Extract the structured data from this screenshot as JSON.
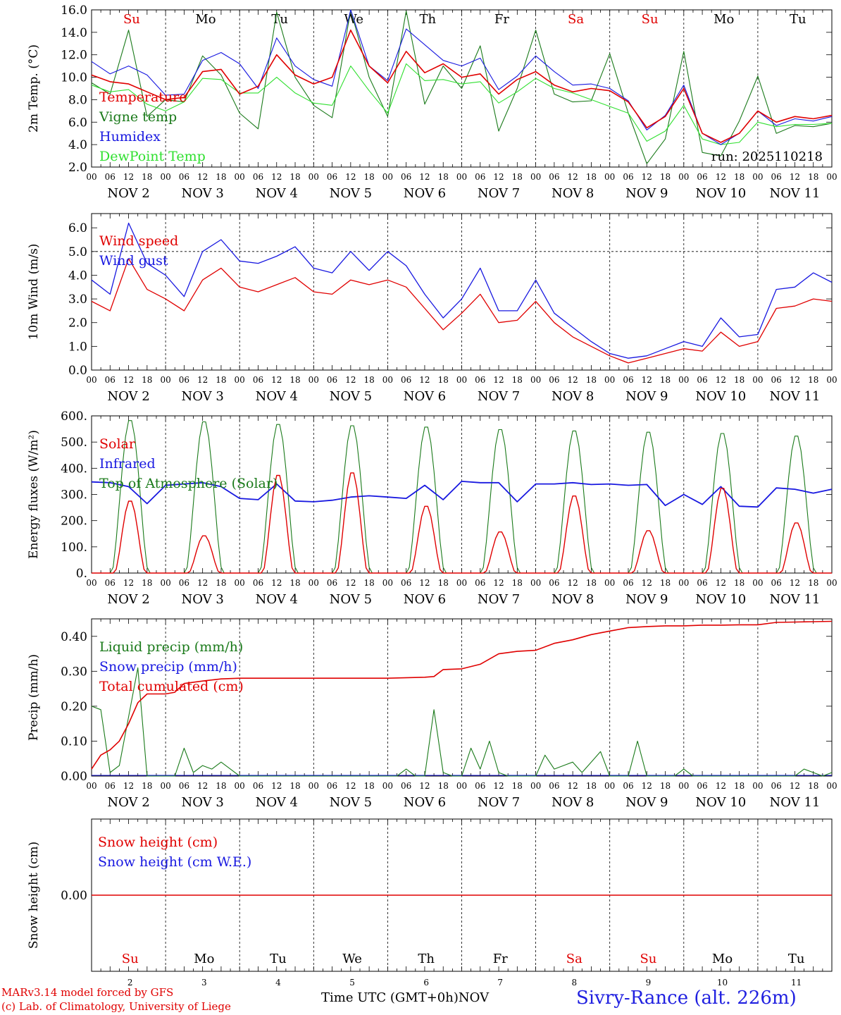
{
  "colors": {
    "red": "#e00000",
    "green": "#1a7a1a",
    "blue": "#1818e0",
    "lightgreen": "#30e030",
    "black": "#000000"
  },
  "days": {
    "weekday_labels": [
      "Su",
      "Mo",
      "Tu",
      "We",
      "Th",
      "Fr",
      "Sa",
      "Su",
      "Mo",
      "Tu"
    ],
    "weekday_red": [
      true,
      false,
      false,
      false,
      false,
      false,
      true,
      true,
      false,
      false
    ],
    "date_labels": [
      "NOV  2",
      "NOV  3",
      "NOV  4",
      "NOV  5",
      "NOV  6",
      "NOV  7",
      "NOV  8",
      "NOV  9",
      "NOV 10",
      "NOV 11"
    ],
    "day_numbers": [
      "2",
      "3",
      "4",
      "5",
      "6",
      "7",
      "8",
      "9",
      "10",
      "11"
    ],
    "hour_ticks": [
      "00",
      "06",
      "12",
      "18"
    ],
    "final_tick": "00"
  },
  "chart_data": [
    {
      "type": "line",
      "id": "temp",
      "ylabel": "2m Temp. (°C)",
      "ylim": [
        2,
        16
      ],
      "yticks": [
        "2.0",
        "4.0",
        "6.0",
        "8.0",
        "10.0",
        "12.0",
        "14.0",
        "16.0"
      ],
      "run_label": "run: 2025110218",
      "legend": [
        "Temperature",
        "Vigne temp",
        "Humidex",
        "DewPoint Temp"
      ],
      "x_hours": [
        0,
        6,
        12,
        18,
        24,
        30,
        36,
        42,
        48,
        54,
        60,
        66,
        72,
        78,
        84,
        90,
        96,
        102,
        108,
        114,
        120,
        126,
        132,
        138,
        144,
        150,
        156,
        162,
        168,
        174,
        180,
        186,
        192,
        198,
        204,
        210,
        216,
        222,
        228,
        234,
        240
      ],
      "series": [
        {
          "name": "Temperature",
          "color": "red",
          "values": [
            10.2,
            9.6,
            9.4,
            8.7,
            8.0,
            8.2,
            10.5,
            10.7,
            8.5,
            9.2,
            12.0,
            10.2,
            9.4,
            10.0,
            14.2,
            11.0,
            9.5,
            12.3,
            10.4,
            11.2,
            10.0,
            10.3,
            8.5,
            9.8,
            10.5,
            9.3,
            8.7,
            9.0,
            8.8,
            7.8,
            5.5,
            6.5,
            9.0,
            5.0,
            4.2,
            5.0,
            7.0,
            6.0,
            6.5,
            6.3,
            6.6
          ]
        },
        {
          "name": "Vigne temp",
          "color": "green",
          "values": [
            9.5,
            8.5,
            14.2,
            6.5,
            8.0,
            7.8,
            11.9,
            10.2,
            6.8,
            5.4,
            15.8,
            10.0,
            7.5,
            6.4,
            16.0,
            10.0,
            6.5,
            15.9,
            7.6,
            11.0,
            9.0,
            12.8,
            5.2,
            9.0,
            14.2,
            8.5,
            7.8,
            7.9,
            12.1,
            6.8,
            2.3,
            4.5,
            12.3,
            3.3,
            3.0,
            6.1,
            10.1,
            5.0,
            5.7,
            5.6,
            5.9
          ]
        },
        {
          "name": "Humidex",
          "color": "blue",
          "values": [
            11.4,
            10.3,
            11.0,
            10.2,
            8.4,
            8.5,
            11.5,
            12.2,
            11.2,
            9.0,
            13.5,
            11.0,
            9.8,
            9.2,
            16.0,
            11.0,
            9.7,
            14.3,
            12.9,
            11.5,
            11.0,
            11.7,
            8.9,
            10.1,
            11.9,
            10.5,
            9.3,
            9.4,
            9.0,
            7.9,
            5.3,
            6.6,
            9.3,
            5.0,
            4.0,
            5.0,
            7.0,
            5.7,
            6.3,
            6.1,
            6.5
          ]
        },
        {
          "name": "DewPoint Temp",
          "color": "lightgreen",
          "values": [
            9.3,
            8.7,
            8.9,
            7.6,
            7.0,
            7.8,
            9.9,
            9.8,
            8.6,
            8.6,
            10.0,
            8.6,
            7.7,
            7.5,
            11.0,
            8.8,
            6.8,
            11.2,
            9.7,
            9.8,
            9.4,
            9.6,
            7.7,
            8.7,
            9.9,
            9.0,
            8.6,
            8.0,
            7.4,
            6.8,
            4.3,
            5.2,
            7.5,
            4.5,
            4.0,
            4.2,
            6.0,
            5.6,
            5.8,
            5.8,
            5.9
          ]
        }
      ]
    },
    {
      "type": "line",
      "id": "wind",
      "ylabel": "10m Wind (m/s)",
      "ylim": [
        0,
        6.6
      ],
      "yticks": [
        "0.0",
        "1.0",
        "2.0",
        "3.0",
        "4.0",
        "5.0",
        "6.0"
      ],
      "reference_line": 5.0,
      "legend": [
        "Wind speed",
        "Wind gust"
      ],
      "x_hours": [
        0,
        6,
        12,
        18,
        24,
        30,
        36,
        42,
        48,
        54,
        60,
        66,
        72,
        78,
        84,
        90,
        96,
        102,
        108,
        114,
        120,
        126,
        132,
        138,
        144,
        150,
        156,
        162,
        168,
        174,
        180,
        186,
        192,
        198,
        204,
        210,
        216,
        222,
        228,
        234,
        240
      ],
      "series": [
        {
          "name": "Wind speed",
          "color": "red",
          "values": [
            2.9,
            2.5,
            4.7,
            3.4,
            3.0,
            2.5,
            3.8,
            4.3,
            3.5,
            3.3,
            3.6,
            3.9,
            3.3,
            3.2,
            3.8,
            3.6,
            3.8,
            3.5,
            2.6,
            1.7,
            2.4,
            3.2,
            2.0,
            2.1,
            2.9,
            2.0,
            1.4,
            1.0,
            0.6,
            0.3,
            0.5,
            0.7,
            0.9,
            0.8,
            1.6,
            1.0,
            1.2,
            2.6,
            2.7,
            3.0,
            2.9
          ]
        },
        {
          "name": "Wind gust",
          "color": "blue",
          "values": [
            3.8,
            3.2,
            6.2,
            4.5,
            4.0,
            3.1,
            5.0,
            5.5,
            4.6,
            4.5,
            4.8,
            5.2,
            4.3,
            4.1,
            5.0,
            4.2,
            5.0,
            4.4,
            3.2,
            2.2,
            3.0,
            4.3,
            2.5,
            2.5,
            3.8,
            2.4,
            1.8,
            1.2,
            0.7,
            0.5,
            0.6,
            0.9,
            1.2,
            1.0,
            2.2,
            1.4,
            1.5,
            3.4,
            3.5,
            4.1,
            3.7
          ]
        }
      ]
    },
    {
      "type": "line",
      "id": "flux",
      "ylabel": "Energy fluxes (W/m²)",
      "ylim": [
        0,
        600
      ],
      "yticks": [
        "0.",
        "100.",
        "200.",
        "300.",
        "400.",
        "500.",
        "600."
      ],
      "legend": [
        "Solar",
        "Infrared",
        "Top of Atmosphere (Solar)"
      ],
      "solar_peaks": [
        280,
        145,
        380,
        390,
        260,
        160,
        300,
        165,
        330,
        195
      ],
      "toa_peaks": [
        590,
        585,
        575,
        570,
        565,
        555,
        550,
        545,
        540,
        530
      ],
      "ir_hours": [
        0,
        6,
        12,
        18,
        24,
        30,
        36,
        42,
        48,
        54,
        60,
        66,
        72,
        78,
        84,
        90,
        96,
        102,
        108,
        114,
        120,
        126,
        132,
        138,
        144,
        150,
        156,
        162,
        168,
        174,
        180,
        186,
        192,
        198,
        204,
        210,
        216,
        222,
        228,
        234,
        240
      ],
      "ir_values": [
        348,
        345,
        330,
        265,
        335,
        340,
        345,
        330,
        285,
        280,
        340,
        275,
        272,
        278,
        290,
        295,
        290,
        285,
        335,
        280,
        350,
        345,
        345,
        272,
        340,
        340,
        345,
        338,
        340,
        335,
        338,
        258,
        300,
        262,
        330,
        255,
        252,
        325,
        320,
        305,
        320
      ],
      "series": [
        {
          "name": "Solar",
          "color": "red"
        },
        {
          "name": "Infrared",
          "color": "blue"
        },
        {
          "name": "Top of Atmosphere (Solar)",
          "color": "green"
        }
      ]
    },
    {
      "type": "line",
      "id": "precip",
      "ylabel": "Precip (mm/h)",
      "ylim": [
        0,
        0.45
      ],
      "yticks": [
        "0.00",
        "0.10",
        "0.20",
        "0.30",
        "0.40"
      ],
      "legend": [
        "Liquid precip (mm/h)",
        "Snow precip (mm/h)",
        "Total cumulated (cm)"
      ],
      "liquid_hours": [
        0,
        3,
        6,
        9,
        12,
        15,
        18,
        21,
        24,
        27,
        30,
        33,
        36,
        39,
        42,
        45,
        48,
        51,
        54,
        57,
        60,
        63,
        66,
        69,
        72,
        75,
        78,
        81,
        84,
        87,
        90,
        93,
        96,
        99,
        102,
        105,
        108,
        111,
        114,
        117,
        120,
        123,
        126,
        129,
        132,
        135,
        138,
        141,
        144,
        147,
        150,
        153,
        156,
        159,
        162,
        165,
        168,
        171,
        174,
        177,
        180,
        183,
        186,
        189,
        192,
        195,
        198,
        201,
        204,
        207,
        210,
        213,
        216,
        219,
        222,
        225,
        228,
        231,
        234,
        237,
        240
      ],
      "liquid_values": [
        0.2,
        0.19,
        0.01,
        0.03,
        0.17,
        0.31,
        0.0,
        0.0,
        0.0,
        0.0,
        0.08,
        0.01,
        0.03,
        0.02,
        0.04,
        0.02,
        0.0,
        0.0,
        0.0,
        0.0,
        0.0,
        0.0,
        0.0,
        0.0,
        0.0,
        0.0,
        0.0,
        0.0,
        0.0,
        0.0,
        0.0,
        0.0,
        0.0,
        0.0,
        0.02,
        0.0,
        0.0,
        0.19,
        0.01,
        0.0,
        0.0,
        0.08,
        0.02,
        0.1,
        0.01,
        0.0,
        0.0,
        0.0,
        0.0,
        0.06,
        0.02,
        0.03,
        0.04,
        0.01,
        0.04,
        0.07,
        0.0,
        0.0,
        0.0,
        0.1,
        0.0,
        0.0,
        0.0,
        0.0,
        0.02,
        0.0,
        0.0,
        0.0,
        0.0,
        0.0,
        0.0,
        0.0,
        0.0,
        0.0,
        0.0,
        0.0,
        0.0,
        0.02,
        0.01,
        0.0,
        0.01
      ],
      "total_hours": [
        0,
        3,
        6,
        9,
        12,
        15,
        18,
        21,
        24,
        27,
        30,
        36,
        42,
        48,
        60,
        72,
        84,
        96,
        108,
        111,
        114,
        120,
        126,
        132,
        138,
        144,
        150,
        156,
        162,
        168,
        174,
        180,
        186,
        192,
        198,
        204,
        210,
        216,
        222,
        228,
        234,
        240
      ],
      "total_values": [
        0.02,
        0.06,
        0.075,
        0.1,
        0.15,
        0.21,
        0.235,
        0.235,
        0.235,
        0.24,
        0.265,
        0.272,
        0.278,
        0.28,
        0.28,
        0.28,
        0.28,
        0.28,
        0.283,
        0.285,
        0.305,
        0.307,
        0.32,
        0.35,
        0.357,
        0.36,
        0.38,
        0.39,
        0.405,
        0.415,
        0.425,
        0.428,
        0.43,
        0.43,
        0.432,
        0.432,
        0.433,
        0.433,
        0.44,
        0.441,
        0.442,
        0.443
      ],
      "series": [
        {
          "name": "Liquid precip (mm/h)",
          "color": "green"
        },
        {
          "name": "Snow precip (mm/h)",
          "color": "blue"
        },
        {
          "name": "Total cumulated (cm)",
          "color": "red"
        }
      ]
    },
    {
      "type": "line",
      "id": "snow",
      "ylabel": "Snow height (cm)",
      "ylim": [
        -1,
        1
      ],
      "yticks": [
        "0.00"
      ],
      "legend": [
        "Snow height (cm)",
        "Snow height (cm W.E.)"
      ],
      "series": [
        {
          "name": "Snow height (cm)",
          "color": "red",
          "values": [
            0,
            0
          ]
        },
        {
          "name": "Snow height (cm W.E.)",
          "color": "blue",
          "values": [
            0,
            0
          ]
        }
      ]
    }
  ],
  "footer": {
    "model_line1": "MARv3.14 model forced by GFS",
    "model_line2": "(c) Lab. of Climatology, University of Liege",
    "time_axis": "Time UTC (GMT+0h)",
    "month": "NOV",
    "station": "Sivry-Rance (alt. 226m)"
  }
}
